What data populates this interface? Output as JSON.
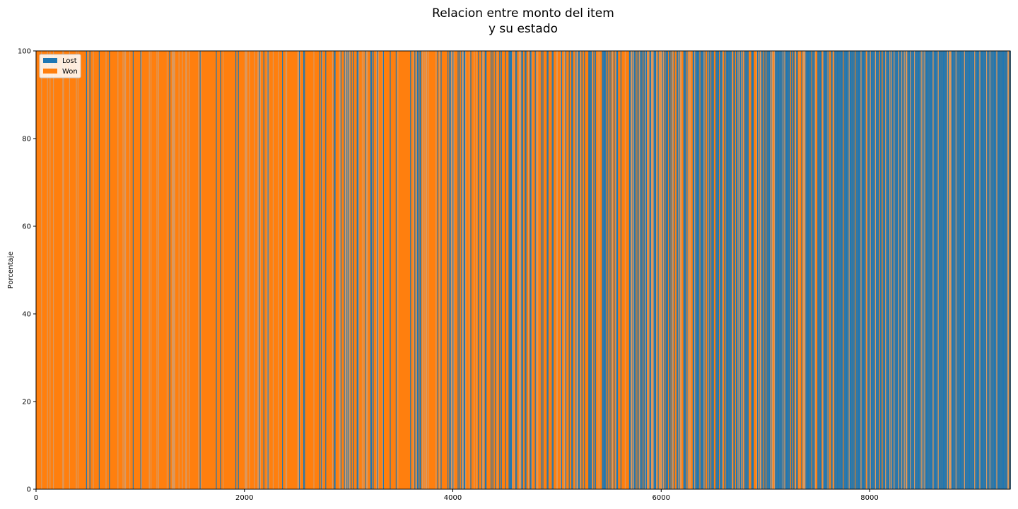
{
  "chart_data": {
    "type": "bar",
    "title_lines": [
      "Relacion entre monto del item",
      "y su estado"
    ],
    "xlabel": "",
    "ylabel": "Porcentaje",
    "xlim": [
      0,
      9350
    ],
    "ylim": [
      0,
      100
    ],
    "xticks": [
      0,
      2000,
      4000,
      6000,
      8000
    ],
    "yticks": [
      0,
      20,
      40,
      60,
      80,
      100
    ],
    "stacked": true,
    "legend_position": "top-left",
    "series": [
      {
        "name": "Lost",
        "color": "#1f77b4"
      },
      {
        "name": "Won",
        "color": "#ff7f0e"
      }
    ],
    "lost_share_by_x": {
      "x": [
        0,
        500,
        1000,
        1500,
        2000,
        2500,
        3000,
        3500,
        4000,
        4500,
        5000,
        5500,
        6000,
        6500,
        7000,
        7500,
        8000,
        8500,
        9000,
        9350
      ],
      "lost_percent": [
        5,
        6,
        8,
        8,
        9,
        12,
        15,
        18,
        22,
        32,
        38,
        42,
        48,
        55,
        60,
        66,
        72,
        80,
        88,
        95
      ]
    }
  }
}
